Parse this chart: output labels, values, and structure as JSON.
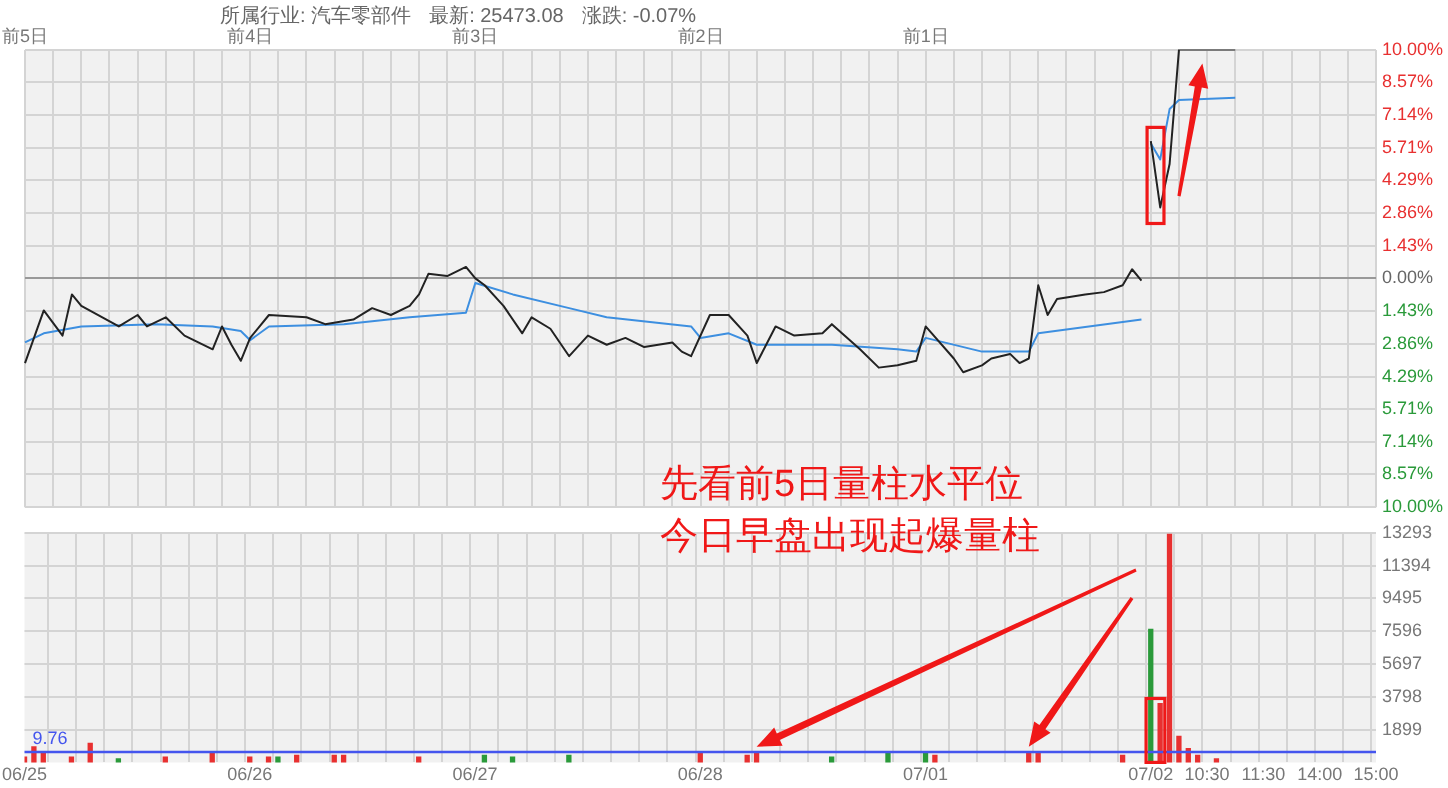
{
  "chart_data": [
    {
      "type": "line",
      "annotations": [
        "所属行业: 汽车零部件",
        "最新: 25473.08",
        "涨跌: -0.07%"
      ],
      "categories": [
        "前5日",
        null,
        null,
        null,
        null,
        null,
        null,
        null,
        null,
        null,
        null,
        null,
        null,
        null,
        null,
        null,
        null,
        null,
        null,
        null,
        null,
        null,
        null,
        null,
        "前4日",
        null,
        null,
        null,
        null,
        null,
        null,
        null,
        null,
        null,
        null,
        null,
        null,
        null,
        null,
        null,
        null,
        null,
        null,
        null,
        null,
        null,
        null,
        null,
        "前3日",
        null,
        null,
        null,
        null,
        null,
        null,
        null,
        null,
        null,
        null,
        null,
        null,
        null,
        null,
        null,
        null,
        null,
        null,
        null,
        null,
        null,
        null,
        null,
        "前2日",
        null,
        null,
        null,
        null,
        null,
        null,
        null,
        null,
        null,
        null,
        null,
        null,
        null,
        null,
        null,
        null,
        null,
        null,
        null,
        null,
        null,
        null,
        null,
        "前1日",
        null,
        null,
        null,
        null,
        null,
        null,
        null,
        null,
        null,
        null,
        null,
        null,
        null,
        null,
        null,
        null,
        null,
        null,
        null,
        null,
        null,
        null,
        null,
        null,
        null,
        null,
        null,
        null,
        null,
        null,
        null,
        null,
        null,
        null,
        null,
        null,
        null,
        null,
        null,
        null,
        null,
        null,
        null,
        null,
        null,
        null,
        null,
        null
      ],
      "ylim": [
        -10,
        10
      ],
      "yticks": [
        {
          "value": 10,
          "label": "10.00%"
        },
        {
          "value": 8.57,
          "label": "8.57%"
        },
        {
          "value": 7.14,
          "label": "7.14%"
        },
        {
          "value": 5.71,
          "label": "5.71%"
        },
        {
          "value": 4.29,
          "label": "4.29%"
        },
        {
          "value": 2.86,
          "label": "2.86%"
        },
        {
          "value": 1.43,
          "label": "1.43%"
        },
        {
          "value": 0,
          "label": "0.00%"
        },
        {
          "value": -1.43,
          "label": "1.43%"
        },
        {
          "value": -2.86,
          "label": "2.86%"
        },
        {
          "value": -4.29,
          "label": "4.29%"
        },
        {
          "value": -5.71,
          "label": "5.71%"
        },
        {
          "value": -7.14,
          "label": "7.14%"
        },
        {
          "value": -8.57,
          "label": "8.57%"
        },
        {
          "value": -10,
          "label": "10.00%"
        }
      ],
      "grid": true,
      "marker": "none",
      "series": [
        {
          "color": "#222222",
          "values": [
            -3.7,
            null,
            -1.4,
            null,
            -2.5,
            -0.7,
            -1.2,
            null,
            null,
            null,
            -2.1,
            null,
            -1.6,
            -2.1,
            null,
            -1.7,
            null,
            -2.5,
            null,
            null,
            -3.1,
            -2.1,
            -2.9,
            -3.6,
            -2.6,
            null,
            -1.6,
            null,
            null,
            null,
            -1.7,
            null,
            -2.0,
            null,
            null,
            -1.8,
            null,
            -1.3,
            null,
            -1.6,
            null,
            -1.2,
            -0.7,
            0.2,
            null,
            0.1,
            null,
            0.5,
            0.0,
            -0.3,
            null,
            -1.2,
            null,
            -2.4,
            -1.7,
            null,
            -2.2,
            null,
            -3.4,
            null,
            -2.5,
            null,
            -2.9,
            null,
            -2.6,
            null,
            -3.0,
            null,
            null,
            -2.8,
            -3.2,
            -3.4,
            null,
            -1.6,
            null,
            -1.6,
            null,
            -2.5,
            -3.7,
            -2.9,
            -2.1,
            null,
            -2.5,
            null,
            null,
            -2.4,
            -2.0,
            null,
            null,
            -3.1,
            null,
            -3.9,
            null,
            -3.8,
            null,
            -3.6,
            -2.1,
            null,
            null,
            -3.5,
            -4.1,
            null,
            -3.8,
            -3.5,
            null,
            -3.3,
            -3.7,
            -3.5,
            -0.3,
            -1.6,
            -0.9,
            null,
            null,
            -0.7,
            null,
            -0.6,
            null,
            -0.3,
            0.4,
            -0.1,
            null,
            null,
            null,
            null,
            null,
            null,
            null,
            null,
            null,
            null,
            null,
            null,
            null,
            null,
            null,
            null,
            null,
            null,
            null,
            null,
            null,
            null,
            null,
            null,
            null
          ]
        },
        {
          "color": "#222222",
          "values": [
            null,
            null,
            null,
            null,
            null,
            null,
            null,
            null,
            null,
            null,
            null,
            null,
            null,
            null,
            null,
            null,
            null,
            null,
            null,
            null,
            null,
            null,
            null,
            null,
            null,
            null,
            null,
            null,
            null,
            null,
            null,
            null,
            null,
            null,
            null,
            null,
            null,
            null,
            null,
            null,
            null,
            null,
            null,
            null,
            null,
            null,
            null,
            null,
            null,
            null,
            null,
            null,
            null,
            null,
            null,
            null,
            null,
            null,
            null,
            null,
            null,
            null,
            null,
            null,
            null,
            null,
            null,
            null,
            null,
            null,
            null,
            null,
            null,
            null,
            null,
            null,
            null,
            null,
            null,
            null,
            null,
            null,
            null,
            null,
            null,
            null,
            null,
            null,
            null,
            null,
            null,
            null,
            null,
            null,
            null,
            null,
            null,
            null,
            null,
            null,
            null,
            null,
            null,
            null,
            null,
            null,
            null,
            null,
            null,
            null,
            null,
            null,
            null,
            null,
            null,
            null,
            null,
            null,
            null,
            null,
            6.0,
            3.1,
            5.0,
            10.0,
            null,
            null,
            null,
            null,
            null,
            10.0,
            null,
            null,
            null,
            null,
            null,
            null,
            null,
            null,
            null,
            null,
            null,
            null,
            null,
            null,
            null
          ]
        },
        {
          "color": "#3d8fe0",
          "values": [
            -2.8,
            null,
            -2.4,
            null,
            null,
            null,
            -2.1,
            null,
            null,
            null,
            null,
            null,
            null,
            null,
            -2.0,
            null,
            null,
            null,
            null,
            null,
            -2.1,
            null,
            null,
            -2.3,
            -2.7,
            null,
            -2.1,
            null,
            null,
            null,
            null,
            null,
            null,
            null,
            -2.0,
            null,
            null,
            null,
            null,
            null,
            null,
            -1.7,
            null,
            null,
            null,
            null,
            null,
            -1.5,
            -0.2,
            null,
            null,
            null,
            -0.7,
            null,
            null,
            null,
            null,
            null,
            -1.3,
            null,
            null,
            null,
            -1.7,
            null,
            null,
            null,
            null,
            null,
            null,
            null,
            null,
            -2.1,
            -2.6,
            null,
            null,
            -2.4,
            null,
            null,
            -2.9,
            null,
            null,
            null,
            null,
            null,
            null,
            null,
            -2.9,
            null,
            null,
            null,
            null,
            null,
            null,
            -3.1,
            null,
            -3.2,
            -2.6,
            null,
            null,
            null,
            null,
            null,
            -3.2,
            null,
            null,
            null,
            null,
            -3.2,
            -2.4,
            null,
            null,
            null,
            null,
            null,
            null,
            null,
            null,
            null,
            null,
            -1.8,
            null,
            null,
            null,
            null,
            null,
            null,
            null,
            null,
            null,
            null,
            null,
            null,
            null,
            null,
            null,
            null,
            null,
            null,
            null,
            null,
            null,
            null,
            null,
            null,
            null
          ]
        },
        {
          "color": "#3d8fe0",
          "values": [
            null,
            null,
            null,
            null,
            null,
            null,
            null,
            null,
            null,
            null,
            null,
            null,
            null,
            null,
            null,
            null,
            null,
            null,
            null,
            null,
            null,
            null,
            null,
            null,
            null,
            null,
            null,
            null,
            null,
            null,
            null,
            null,
            null,
            null,
            null,
            null,
            null,
            null,
            null,
            null,
            null,
            null,
            null,
            null,
            null,
            null,
            null,
            null,
            null,
            null,
            null,
            null,
            null,
            null,
            null,
            null,
            null,
            null,
            null,
            null,
            null,
            null,
            null,
            null,
            null,
            null,
            null,
            null,
            null,
            null,
            null,
            null,
            null,
            null,
            null,
            null,
            null,
            null,
            null,
            null,
            null,
            null,
            null,
            null,
            null,
            null,
            null,
            null,
            null,
            null,
            null,
            null,
            null,
            null,
            null,
            null,
            null,
            null,
            null,
            null,
            null,
            null,
            null,
            null,
            null,
            null,
            null,
            null,
            null,
            null,
            null,
            null,
            null,
            null,
            null,
            null,
            null,
            null,
            null,
            null,
            5.9,
            5.2,
            7.4,
            7.8,
            null,
            null,
            null,
            null,
            null,
            7.9,
            null,
            null,
            null,
            null,
            null,
            null,
            null,
            null,
            null,
            null,
            null,
            null,
            null,
            null,
            null
          ]
        }
      ]
    },
    {
      "type": "bar",
      "annotations": [
        "先看前5日量柱水平位",
        "今日早盘出现起爆量柱",
        {
          "text": "9.76",
          "y": 600
        }
      ],
      "categories": [
        "06/25",
        null,
        null,
        null,
        null,
        null,
        null,
        null,
        null,
        null,
        null,
        null,
        null,
        null,
        null,
        null,
        null,
        null,
        null,
        null,
        null,
        null,
        null,
        null,
        "06/26",
        null,
        null,
        null,
        null,
        null,
        null,
        null,
        null,
        null,
        null,
        null,
        null,
        null,
        null,
        null,
        null,
        null,
        null,
        null,
        null,
        null,
        null,
        null,
        "06/27",
        null,
        null,
        null,
        null,
        null,
        null,
        null,
        null,
        null,
        null,
        null,
        null,
        null,
        null,
        null,
        null,
        null,
        null,
        null,
        null,
        null,
        null,
        null,
        "06/28",
        null,
        null,
        null,
        null,
        null,
        null,
        null,
        null,
        null,
        null,
        null,
        null,
        null,
        null,
        null,
        null,
        null,
        null,
        null,
        null,
        null,
        null,
        null,
        "07/01",
        null,
        null,
        null,
        null,
        null,
        null,
        null,
        null,
        null,
        null,
        null,
        null,
        null,
        null,
        null,
        null,
        null,
        null,
        null,
        null,
        null,
        null,
        null,
        "07/02",
        null,
        null,
        null,
        null,
        null,
        "10:30",
        null,
        null,
        null,
        null,
        null,
        "11:30",
        null,
        null,
        null,
        null,
        null,
        "14:00",
        null,
        null,
        null,
        null,
        null,
        "15:00"
      ],
      "ylim": [
        0,
        13293
      ],
      "yticks": [
        1899,
        3798,
        5697,
        7596,
        9495,
        11394,
        13293
      ],
      "grid": true,
      "ref_lines": [
        {
          "axis": "y",
          "value": 600,
          "color": "#4455ee"
        }
      ],
      "values": [
        300,
        900,
        600,
        null,
        null,
        300,
        null,
        1100,
        null,
        null,
        200,
        null,
        null,
        null,
        null,
        300,
        null,
        null,
        null,
        null,
        500,
        null,
        null,
        null,
        300,
        null,
        300,
        300,
        null,
        400,
        null,
        null,
        null,
        400,
        400,
        null,
        null,
        null,
        null,
        null,
        null,
        null,
        300,
        null,
        null,
        null,
        null,
        null,
        null,
        400,
        null,
        null,
        300,
        null,
        null,
        null,
        null,
        null,
        400,
        null,
        null,
        null,
        null,
        null,
        null,
        null,
        null,
        null,
        null,
        null,
        null,
        null,
        500,
        null,
        null,
        null,
        null,
        400,
        600,
        null,
        null,
        null,
        null,
        null,
        null,
        null,
        300,
        null,
        null,
        null,
        null,
        null,
        600,
        null,
        null,
        null,
        500,
        400,
        null,
        null,
        null,
        null,
        null,
        null,
        null,
        null,
        null,
        600,
        500,
        null,
        null,
        null,
        null,
        null,
        null,
        null,
        null,
        400,
        null,
        null,
        7700,
        3400,
        13200,
        1500,
        800,
        400,
        null,
        200,
        null,
        null,
        null,
        null,
        null,
        null,
        null,
        null,
        null,
        null,
        null,
        null,
        null,
        null,
        null,
        null,
        null
      ],
      "colors": [
        "#e83030",
        "#e83030",
        "#e83030",
        null,
        null,
        "#e83030",
        null,
        "#e83030",
        null,
        null,
        "#2a9a3a",
        null,
        null,
        null,
        null,
        "#e83030",
        null,
        null,
        null,
        null,
        "#e83030",
        null,
        null,
        null,
        "#e83030",
        null,
        "#e83030",
        "#2a9a3a",
        null,
        "#e83030",
        null,
        null,
        null,
        "#e83030",
        "#e83030",
        null,
        null,
        null,
        null,
        null,
        null,
        null,
        "#e83030",
        null,
        null,
        null,
        null,
        null,
        null,
        "#2a9a3a",
        null,
        null,
        "#2a9a3a",
        null,
        null,
        null,
        null,
        null,
        "#2a9a3a",
        null,
        null,
        null,
        null,
        null,
        null,
        null,
        null,
        null,
        null,
        null,
        null,
        null,
        "#e83030",
        null,
        null,
        null,
        null,
        "#e83030",
        "#e83030",
        null,
        null,
        null,
        null,
        null,
        null,
        null,
        "#2a9a3a",
        null,
        null,
        null,
        null,
        null,
        "#2a9a3a",
        null,
        null,
        null,
        "#2a9a3a",
        "#e83030",
        null,
        null,
        null,
        null,
        null,
        null,
        null,
        null,
        null,
        "#e83030",
        "#e83030",
        null,
        null,
        null,
        null,
        null,
        null,
        null,
        null,
        "#e83030",
        null,
        null,
        "#2a9a3a",
        "#e83030",
        "#e83030",
        "#e83030",
        "#e83030",
        "#e83030",
        null,
        "#e83030",
        null,
        null,
        null,
        null,
        null,
        null,
        null,
        null,
        null,
        null,
        null,
        null,
        null,
        null,
        null,
        null,
        null
      ]
    }
  ]
}
